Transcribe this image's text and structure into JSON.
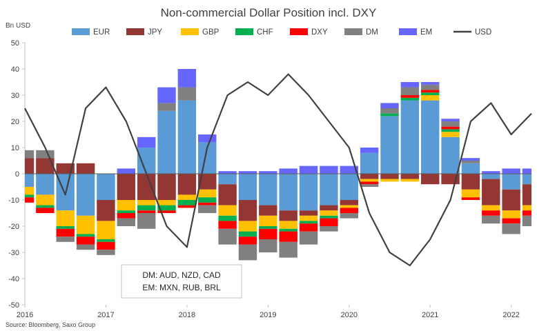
{
  "chart_data": {
    "type": "area",
    "title": "Non-commercial Dollar Position incl. DXY",
    "ylabel": "Bn USD",
    "ylim": [
      -50,
      50
    ],
    "yticks": [
      50,
      40,
      30,
      20,
      10,
      0,
      -10,
      -20,
      -30,
      -40,
      -50
    ],
    "xlim": [
      "2016-01",
      "2022-04"
    ],
    "xticks": [
      "2016",
      "2017",
      "2018",
      "2019",
      "2020",
      "2021",
      "2022"
    ],
    "grid": false,
    "legend_position": "top",
    "source": "Source: Bloomberg, Saxo Group",
    "note_lines": [
      "DM: AUD, NZD, CAD",
      "EM: MXN, RUB, BRL"
    ],
    "x": [
      "2016-01",
      "2016-04",
      "2016-07",
      "2016-10",
      "2017-01",
      "2017-04",
      "2017-07",
      "2017-10",
      "2018-01",
      "2018-04",
      "2018-07",
      "2018-10",
      "2019-01",
      "2019-04",
      "2019-07",
      "2019-10",
      "2020-01",
      "2020-04",
      "2020-07",
      "2020-10",
      "2021-01",
      "2021-04",
      "2021-07",
      "2021-10",
      "2022-01",
      "2022-04"
    ],
    "series": [
      {
        "name": "EUR",
        "color": "#5B9BD5",
        "values": [
          -5,
          -8,
          -14,
          -16,
          -10,
          0,
          10,
          24,
          28,
          12,
          -4,
          -10,
          -12,
          -14,
          -14,
          -12,
          -10,
          8,
          22,
          28,
          28,
          14,
          4,
          -2,
          -6,
          -4
        ]
      },
      {
        "name": "JPY",
        "color": "#943634",
        "values": [
          6,
          6,
          4,
          4,
          -8,
          -10,
          -10,
          -10,
          -8,
          -6,
          -8,
          -8,
          -4,
          -4,
          -2,
          -2,
          -2,
          -2,
          -2,
          -2,
          -4,
          -4,
          -6,
          -10,
          -8,
          -8
        ]
      },
      {
        "name": "GBP",
        "color": "#FFC000",
        "values": [
          -3,
          -4,
          -6,
          -7,
          -7,
          -4,
          -2,
          -2,
          -2,
          -3,
          -4,
          -4,
          -4,
          -3,
          -2,
          -2,
          -1,
          -1,
          -1,
          -1,
          2,
          2,
          -3,
          -2,
          -3,
          -2
        ]
      },
      {
        "name": "CHF",
        "color": "#00B050",
        "values": [
          -1,
          -1,
          -1,
          -1,
          -1,
          -1,
          -2,
          -2,
          -2,
          -2,
          -2,
          -2,
          -1,
          -1,
          -1,
          -1,
          0,
          0,
          1,
          1,
          1,
          1,
          0,
          0,
          0,
          0
        ]
      },
      {
        "name": "DXY",
        "color": "#FF0000",
        "values": [
          -2,
          -2,
          -3,
          -3,
          -3,
          -2,
          -1,
          -1,
          -1,
          -1,
          -3,
          -3,
          -4,
          -4,
          -3,
          -3,
          -2,
          -1,
          0,
          1,
          1,
          1,
          -1,
          -2,
          -2,
          -2
        ]
      },
      {
        "name": "DM",
        "color": "#808080",
        "values": [
          3,
          3,
          -2,
          -2,
          -2,
          -3,
          -6,
          3,
          5,
          -3,
          -6,
          -6,
          -5,
          -6,
          -5,
          -2,
          -2,
          -1,
          2,
          3,
          2,
          2,
          1,
          -3,
          -4,
          -4
        ]
      },
      {
        "name": "EM",
        "color": "#6666FF",
        "values": [
          0,
          0,
          0,
          0,
          0,
          2,
          4,
          6,
          7,
          3,
          1,
          1,
          1,
          2,
          3,
          3,
          3,
          2,
          2,
          2,
          1,
          1,
          1,
          1,
          2,
          2
        ]
      },
      {
        "name": "USD",
        "color": "#404040",
        "type": "line",
        "values": [
          25,
          10,
          -8,
          25,
          33,
          20,
          0,
          -20,
          -28,
          10,
          30,
          35,
          30,
          38,
          30,
          20,
          10,
          -15,
          -30,
          -35,
          -25,
          -10,
          20,
          27,
          15,
          23
        ]
      }
    ]
  }
}
